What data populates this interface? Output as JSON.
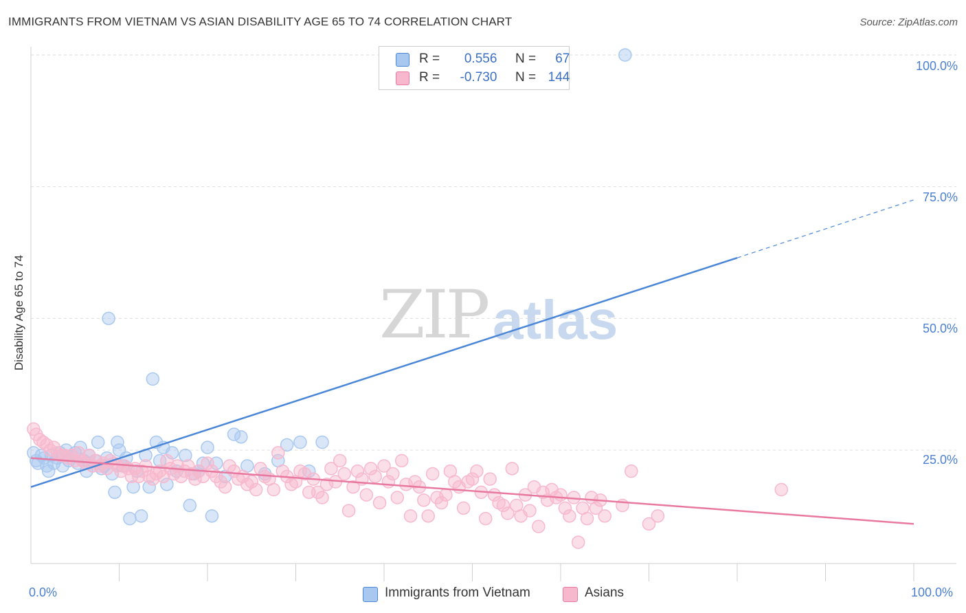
{
  "header": {
    "title": "IMMIGRANTS FROM VIETNAM VS ASIAN DISABILITY AGE 65 TO 74 CORRELATION CHART",
    "source": "Source: ZipAtlas.com"
  },
  "watermark": {
    "zip": "ZIP",
    "atlas": "atlas"
  },
  "legend": {
    "rows": [
      {
        "r_label": "R =",
        "r_value": "0.556",
        "n_label": "N =",
        "n_value": "67",
        "color": "#a9c8f0"
      },
      {
        "r_label": "R =",
        "r_value": "-0.730",
        "n_label": "N =",
        "n_value": "144",
        "color": "#f7b8cd"
      }
    ]
  },
  "bottom_legend": {
    "items": [
      {
        "label": "Immigrants from Vietnam",
        "color": "#a9c8f0"
      },
      {
        "label": "Asians",
        "color": "#f7b8cd"
      }
    ]
  },
  "chart_data": {
    "type": "scatter",
    "title": "IMMIGRANTS FROM VIETNAM VS ASIAN DISABILITY AGE 65 TO 74 CORRELATION CHART",
    "xlabel": "",
    "ylabel": "Disability Age 65 to 74",
    "xlim": [
      0,
      100
    ],
    "ylim": [
      0,
      105
    ],
    "x_tick_labels": [
      "0.0%",
      "100.0%"
    ],
    "y_ticks": [
      25,
      50,
      75,
      100
    ],
    "y_tick_labels": [
      "25.0%",
      "50.0%",
      "75.0%",
      "100.0%"
    ],
    "grid": true,
    "series": [
      {
        "name": "Immigrants from Vietnam",
        "color": "#4a86d8",
        "fill": "#a9c8f0",
        "r": 0.556,
        "n": 67,
        "trend": {
          "x0": 0,
          "y0": 18,
          "x1": 80,
          "y1": 61.5,
          "dash_to_x": 100,
          "dash_to_y": 72.5
        },
        "points": [
          [
            0.3,
            24.5
          ],
          [
            0.6,
            23
          ],
          [
            0.8,
            22.5
          ],
          [
            1.2,
            24
          ],
          [
            1.5,
            23.5
          ],
          [
            1.8,
            22
          ],
          [
            2,
            21
          ],
          [
            2.3,
            24
          ],
          [
            2.6,
            22.5
          ],
          [
            3,
            23.5
          ],
          [
            3.3,
            24.5
          ],
          [
            3.6,
            22
          ],
          [
            4,
            25
          ],
          [
            4.3,
            23
          ],
          [
            4.6,
            24
          ],
          [
            5,
            24.5
          ],
          [
            5.3,
            22.5
          ],
          [
            5.6,
            25.5
          ],
          [
            6,
            23
          ],
          [
            6.3,
            21
          ],
          [
            6.6,
            24
          ],
          [
            7,
            22
          ],
          [
            7.3,
            23
          ],
          [
            7.6,
            26.5
          ],
          [
            8,
            21.5
          ],
          [
            8.3,
            22
          ],
          [
            8.6,
            23.5
          ],
          [
            8.8,
            50
          ],
          [
            9.2,
            20.5
          ],
          [
            9.5,
            17
          ],
          [
            9.8,
            26.5
          ],
          [
            10,
            25
          ],
          [
            10.4,
            22
          ],
          [
            10.8,
            23.5
          ],
          [
            11.2,
            12
          ],
          [
            11.6,
            18
          ],
          [
            12,
            21
          ],
          [
            12.5,
            12.5
          ],
          [
            13,
            24
          ],
          [
            13.4,
            18
          ],
          [
            13.8,
            38.5
          ],
          [
            14.2,
            26.5
          ],
          [
            14.6,
            23
          ],
          [
            15,
            25.5
          ],
          [
            15.4,
            18.5
          ],
          [
            16,
            24.5
          ],
          [
            16.5,
            21
          ],
          [
            17.5,
            24
          ],
          [
            18,
            14.5
          ],
          [
            18.5,
            20.5
          ],
          [
            19,
            21
          ],
          [
            19.5,
            22.5
          ],
          [
            20,
            25.5
          ],
          [
            20.5,
            12.5
          ],
          [
            21,
            22.5
          ],
          [
            22,
            20
          ],
          [
            23,
            28
          ],
          [
            23.8,
            27.5
          ],
          [
            24.5,
            22
          ],
          [
            26.5,
            20.5
          ],
          [
            28,
            23
          ],
          [
            29,
            26
          ],
          [
            30.5,
            26.5
          ],
          [
            31.5,
            21
          ],
          [
            33,
            26.5
          ],
          [
            67.3,
            100
          ]
        ]
      },
      {
        "name": "Asians",
        "color": "#e8789f",
        "fill": "#f7b8cd",
        "r": -0.73,
        "n": 144,
        "trend": {
          "x0": 0,
          "y0": 23.5,
          "x1": 100,
          "y1": 11
        },
        "points": [
          [
            0.3,
            29
          ],
          [
            0.6,
            28
          ],
          [
            1,
            27
          ],
          [
            1.4,
            26.5
          ],
          [
            1.8,
            26
          ],
          [
            2.2,
            25
          ],
          [
            2.6,
            25.5
          ],
          [
            3,
            24.5
          ],
          [
            3.4,
            24
          ],
          [
            3.8,
            24
          ],
          [
            4.2,
            23.5
          ],
          [
            4.6,
            24
          ],
          [
            5,
            23
          ],
          [
            5.4,
            24.5
          ],
          [
            5.8,
            23
          ],
          [
            6.2,
            22.5
          ],
          [
            6.6,
            24
          ],
          [
            7,
            22
          ],
          [
            7.4,
            23
          ],
          [
            7.8,
            22
          ],
          [
            8.2,
            22.5
          ],
          [
            8.6,
            21.5
          ],
          [
            9,
            23
          ],
          [
            9.4,
            22.5
          ],
          [
            9.8,
            22
          ],
          [
            10.2,
            21
          ],
          [
            10.6,
            22
          ],
          [
            11,
            21.5
          ],
          [
            11.4,
            20
          ],
          [
            11.8,
            21.5
          ],
          [
            12.2,
            20
          ],
          [
            12.6,
            21
          ],
          [
            13,
            22
          ],
          [
            13.4,
            20
          ],
          [
            13.8,
            19.5
          ],
          [
            14.2,
            20.5
          ],
          [
            14.6,
            21
          ],
          [
            15,
            20
          ],
          [
            15.4,
            23
          ],
          [
            15.8,
            21.5
          ],
          [
            16.2,
            20.5
          ],
          [
            16.6,
            22
          ],
          [
            17,
            20
          ],
          [
            17.4,
            21
          ],
          [
            17.8,
            22
          ],
          [
            18.2,
            20.5
          ],
          [
            18.6,
            19.5
          ],
          [
            19,
            21
          ],
          [
            19.5,
            20
          ],
          [
            20,
            22.5
          ],
          [
            20.5,
            21
          ],
          [
            21,
            20
          ],
          [
            21.5,
            19
          ],
          [
            22,
            18
          ],
          [
            22.5,
            22
          ],
          [
            23,
            21
          ],
          [
            23.5,
            19.5
          ],
          [
            24,
            20
          ],
          [
            24.5,
            18.5
          ],
          [
            25,
            19
          ],
          [
            25.5,
            17.5
          ],
          [
            26,
            21.5
          ],
          [
            26.5,
            20
          ],
          [
            27,
            19.5
          ],
          [
            27.5,
            17.5
          ],
          [
            28,
            24.5
          ],
          [
            28.5,
            21
          ],
          [
            29,
            20
          ],
          [
            29.5,
            18.5
          ],
          [
            30,
            19
          ],
          [
            30.5,
            21
          ],
          [
            31,
            20.5
          ],
          [
            31.5,
            17
          ],
          [
            32,
            19.5
          ],
          [
            32.5,
            17
          ],
          [
            33,
            16
          ],
          [
            33.5,
            18.5
          ],
          [
            34,
            21.5
          ],
          [
            34.5,
            19
          ],
          [
            35,
            23
          ],
          [
            35.5,
            20.5
          ],
          [
            36,
            13.5
          ],
          [
            36.5,
            18
          ],
          [
            37,
            21
          ],
          [
            37.5,
            19.5
          ],
          [
            38,
            16.5
          ],
          [
            38.5,
            21.5
          ],
          [
            39,
            20
          ],
          [
            39.5,
            15
          ],
          [
            40,
            22
          ],
          [
            40.5,
            19
          ],
          [
            41,
            20.5
          ],
          [
            41.5,
            16
          ],
          [
            42,
            23
          ],
          [
            42.5,
            18.5
          ],
          [
            43,
            12.5
          ],
          [
            43.5,
            19
          ],
          [
            44,
            18
          ],
          [
            44.5,
            15.5
          ],
          [
            45,
            12.5
          ],
          [
            45.5,
            20.5
          ],
          [
            46,
            16
          ],
          [
            46.5,
            15
          ],
          [
            47,
            16.5
          ],
          [
            47.5,
            21
          ],
          [
            48,
            19
          ],
          [
            48.5,
            18
          ],
          [
            49,
            14
          ],
          [
            49.5,
            19
          ],
          [
            50,
            19.5
          ],
          [
            50.5,
            21
          ],
          [
            51,
            17
          ],
          [
            51.5,
            12
          ],
          [
            52,
            19.5
          ],
          [
            52.5,
            16.5
          ],
          [
            53,
            15
          ],
          [
            53.5,
            14.5
          ],
          [
            54,
            13
          ],
          [
            54.5,
            21.5
          ],
          [
            55,
            14.5
          ],
          [
            55.5,
            12.5
          ],
          [
            56,
            16.5
          ],
          [
            56.5,
            13.5
          ],
          [
            57,
            18
          ],
          [
            57.5,
            10.5
          ],
          [
            58,
            17
          ],
          [
            58.5,
            15.5
          ],
          [
            59,
            17.5
          ],
          [
            59.5,
            16
          ],
          [
            60,
            16.5
          ],
          [
            60.5,
            14
          ],
          [
            61,
            12.5
          ],
          [
            61.5,
            16
          ],
          [
            62,
            7.5
          ],
          [
            62.5,
            14
          ],
          [
            63,
            12
          ],
          [
            63.5,
            16
          ],
          [
            64,
            14
          ],
          [
            64.5,
            15.5
          ],
          [
            65,
            12.5
          ],
          [
            67,
            14.5
          ],
          [
            68,
            21
          ],
          [
            70,
            11
          ],
          [
            71,
            12.5
          ],
          [
            85,
            17.5
          ]
        ]
      }
    ]
  }
}
